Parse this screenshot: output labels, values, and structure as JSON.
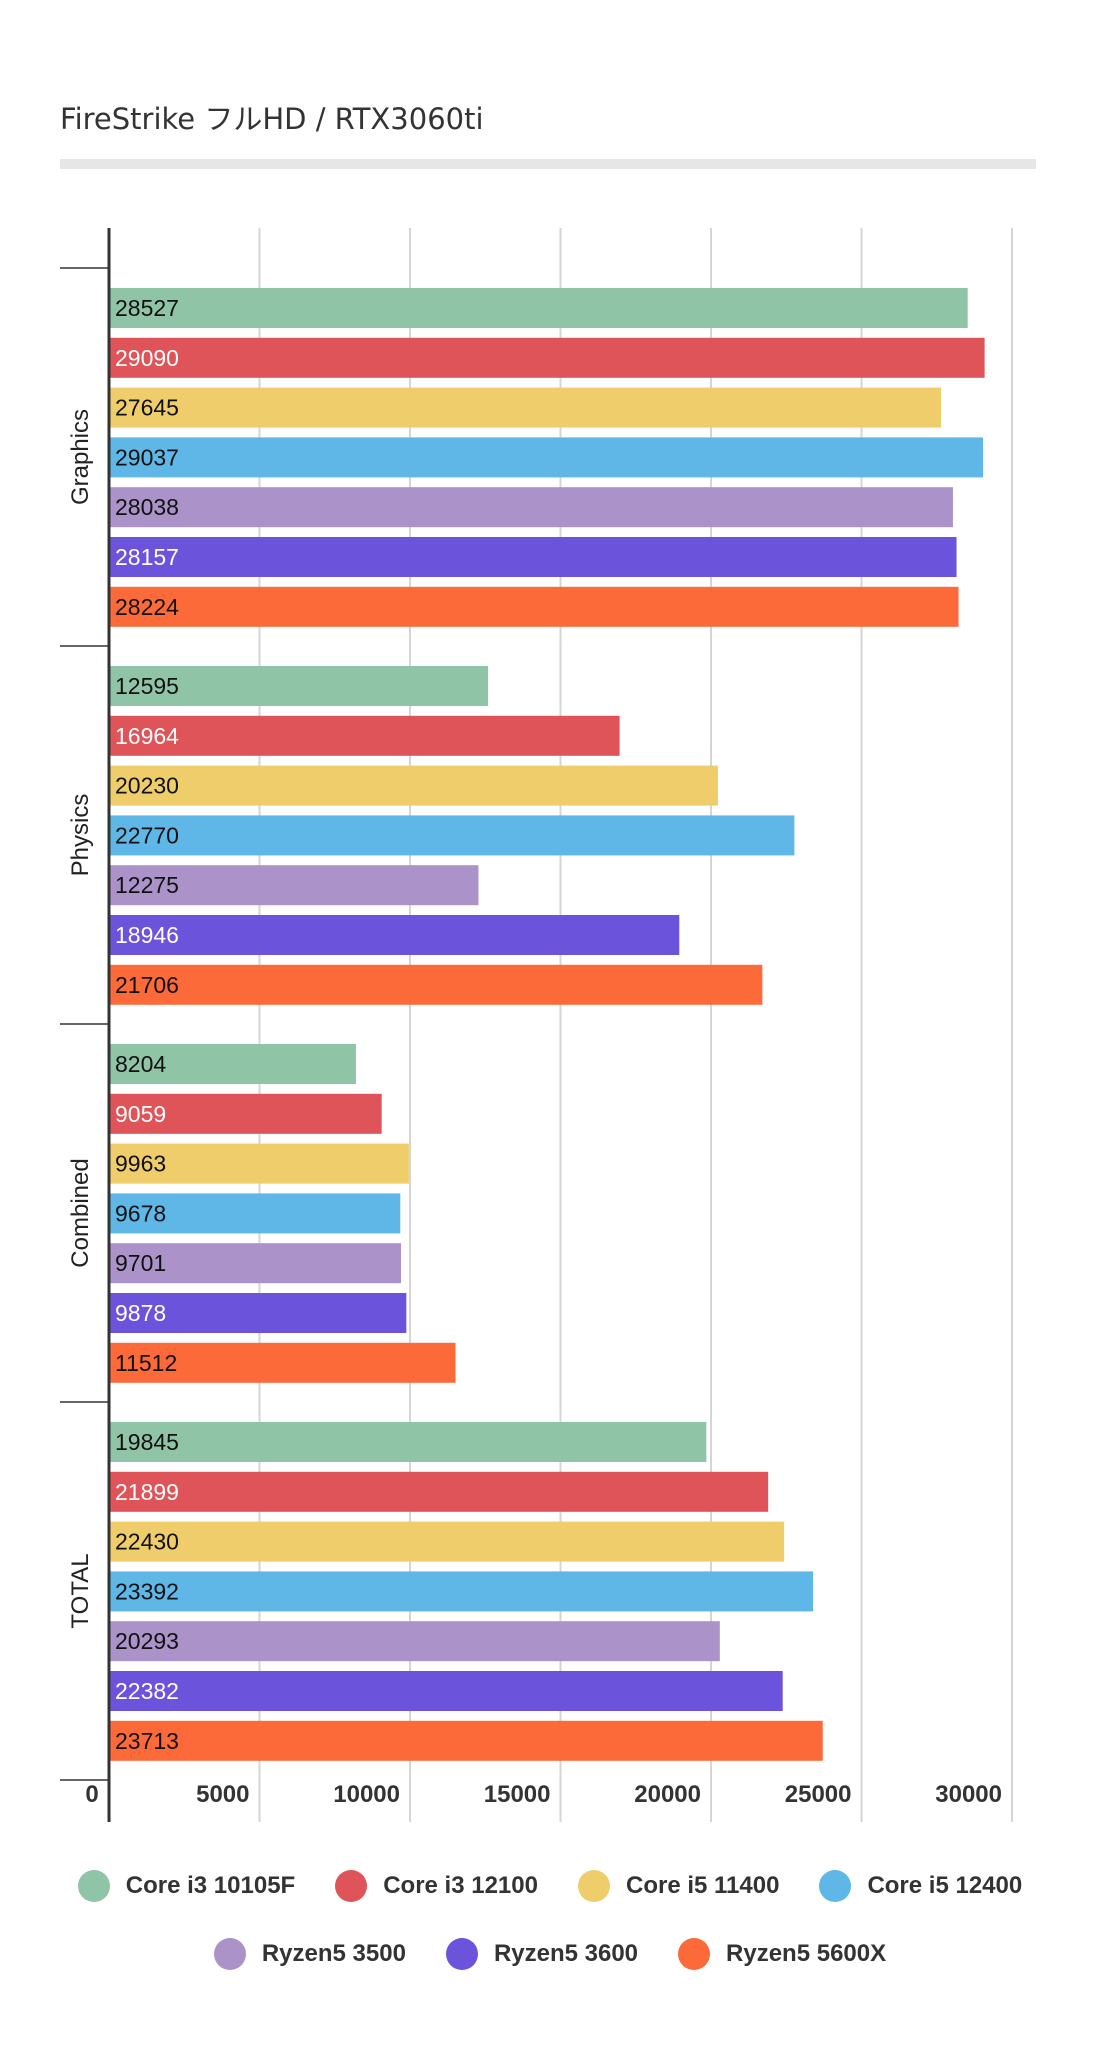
{
  "chart_data": {
    "type": "bar",
    "orientation": "horizontal",
    "title": "FireStrike フルHD / RTX3060ti",
    "categories": [
      "Graphics",
      "Physics",
      "Combined",
      "TOTAL"
    ],
    "series": [
      {
        "name": "Core i3 10105F",
        "color": "#8fc4a7",
        "label_color": "#111111",
        "values": [
          28527,
          12595,
          8204,
          19845
        ]
      },
      {
        "name": "Core i3 12100",
        "color": "#de5458",
        "label_color": "#ffffff",
        "values": [
          29090,
          16964,
          9059,
          21899
        ]
      },
      {
        "name": "Core i5 11400",
        "color": "#eecd6a",
        "label_color": "#111111",
        "values": [
          27645,
          20230,
          9963,
          22430
        ]
      },
      {
        "name": "Core i5 12400",
        "color": "#5eb7e6",
        "label_color": "#111111",
        "values": [
          29037,
          22770,
          9678,
          23392
        ]
      },
      {
        "name": "Ryzen5 3500",
        "color": "#ab93c9",
        "label_color": "#111111",
        "values": [
          28038,
          12275,
          9701,
          20293
        ]
      },
      {
        "name": "Ryzen5 3600",
        "color": "#6c53db",
        "label_color": "#ffffff",
        "values": [
          28157,
          18946,
          9878,
          22382
        ]
      },
      {
        "name": "Ryzen5 5600X",
        "color": "#fd6a3a",
        "label_color": "#111111",
        "values": [
          28224,
          21706,
          11512,
          23713
        ]
      }
    ],
    "x_ticks": [
      "0",
      "5000",
      "10000",
      "15000",
      "20000",
      "25000",
      "30000"
    ],
    "xlim": [
      0,
      30000
    ],
    "grid": true,
    "legend_position": "bottom"
  }
}
